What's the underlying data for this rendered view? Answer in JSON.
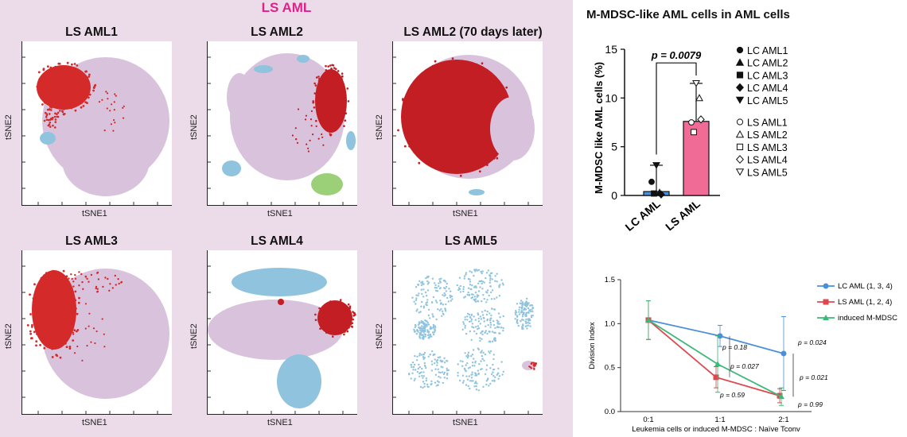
{
  "main_title": "LS AML",
  "tsne_axis": {
    "xlabel": "tSNE1",
    "ylabel": "tSNE2"
  },
  "tsne_panels": [
    {
      "title": "LS AML1"
    },
    {
      "title": "LS AML2"
    },
    {
      "title": "LS AML2 (70 days later)"
    },
    {
      "title": "LS AML3"
    },
    {
      "title": "LS AML4"
    },
    {
      "title": "LS AML5"
    }
  ],
  "colors": {
    "lavender": "#d9c3dc",
    "red": "#d42a2a",
    "darkred": "#c31e24",
    "blue": "#8fc3de",
    "green": "#9bcf78",
    "pink": "#f06b95",
    "lc_blue": "#4a90d9",
    "ls_red": "#e0474c",
    "mdsc_green": "#3cb878"
  },
  "chart_data": [
    {
      "type": "bar",
      "title": "M-MDSC-like AML cells in AML cells",
      "ylabel": "M-MDSC like AML cells (%)",
      "categories": [
        "LC AML",
        "LS AML"
      ],
      "values": [
        0.4,
        7.6
      ],
      "error_upper": [
        3.1,
        11.5
      ],
      "ylim": [
        0,
        15
      ],
      "yticks": [
        0,
        5,
        10,
        15
      ],
      "annotation": "p = 0.0079",
      "points": [
        {
          "group": "LC AML",
          "label": "LC AML1",
          "marker": "circle-filled",
          "value": 1.4
        },
        {
          "group": "LC AML",
          "label": "LC AML2",
          "marker": "triangle-filled",
          "value": 0.3
        },
        {
          "group": "LC AML",
          "label": "LC AML3",
          "marker": "square-filled",
          "value": 0.2
        },
        {
          "group": "LC AML",
          "label": "LC AML4",
          "marker": "diamond-filled",
          "value": 0.1
        },
        {
          "group": "LC AML",
          "label": "LC AML5",
          "marker": "triangle-down-filled",
          "value": 3.1
        },
        {
          "group": "LS AML",
          "label": "LS AML1",
          "marker": "circle-open",
          "value": 7.5
        },
        {
          "group": "LS AML",
          "label": "LS AML2",
          "marker": "triangle-open",
          "value": 10.0
        },
        {
          "group": "LS AML",
          "label": "LS AML3",
          "marker": "square-open",
          "value": 6.5
        },
        {
          "group": "LS AML",
          "label": "LS AML4",
          "marker": "diamond-open",
          "value": 7.8
        },
        {
          "group": "LS AML",
          "label": "LS AML5",
          "marker": "triangle-down-open",
          "value": 11.5
        }
      ],
      "legend": [
        "LC AML1",
        "LC AML2",
        "LC AML3",
        "LC AML4",
        "LC AML5",
        "LS AML1",
        "LS AML2",
        "LS AML3",
        "LS AML4",
        "LS AML5"
      ]
    },
    {
      "type": "line",
      "xlabel": "Leukemia cells or induced M-MDSC : Naïve Tconv",
      "ylabel": "Division Index",
      "categories": [
        "0:1",
        "1:1",
        "2:1"
      ],
      "ylim": [
        0,
        1.5
      ],
      "yticks": [
        "0.0",
        "0.5",
        "1.0",
        "1.5"
      ],
      "series": [
        {
          "name": "LC AML (1, 3, 4)",
          "values": [
            1.04,
            0.86,
            0.66
          ],
          "err": [
            0.22,
            0.12,
            0.42
          ]
        },
        {
          "name": "LS AML (1, 2, 4)",
          "values": [
            1.04,
            0.39,
            0.18
          ],
          "err": [
            0.22,
            0.12,
            0.08
          ]
        },
        {
          "name": "induced M-MDSC",
          "values": [
            1.04,
            0.54,
            0.17
          ],
          "err": [
            0.22,
            0.32,
            0.1
          ]
        }
      ],
      "annotations": [
        "p = 0.18",
        "p = 0.027",
        "p = 0.59",
        "p = 0.024",
        "p = 0.021",
        "p = 0.99"
      ]
    }
  ]
}
